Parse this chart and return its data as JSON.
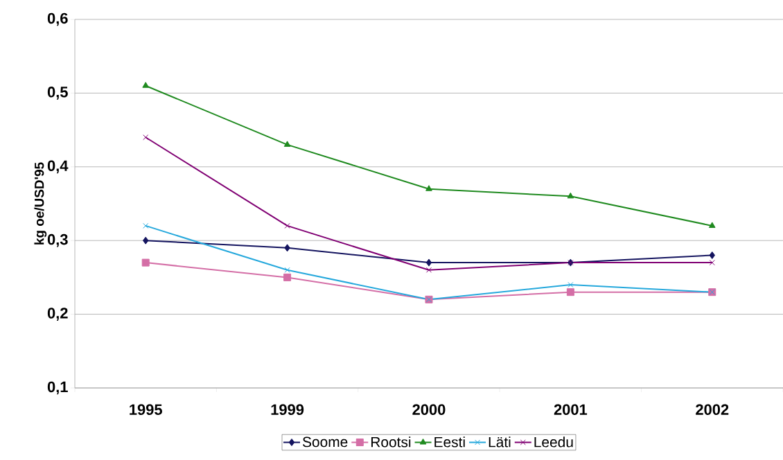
{
  "chart_data": {
    "type": "line",
    "ylabel": "kg oe/USD'95",
    "categories": [
      "1995",
      "1999",
      "2000",
      "2001",
      "2002"
    ],
    "ylim": [
      0.1,
      0.6
    ],
    "yticks": [
      {
        "value": 0.1,
        "label": "0,1"
      },
      {
        "value": 0.2,
        "label": "0,2"
      },
      {
        "value": 0.3,
        "label": "0,3"
      },
      {
        "value": 0.4,
        "label": "0,4"
      },
      {
        "value": 0.5,
        "label": "0,5"
      },
      {
        "value": 0.6,
        "label": "0,6"
      }
    ],
    "grid": "y",
    "legend": "bottom",
    "series": [
      {
        "name": "Soome",
        "color": "#14145f",
        "marker": "diamond",
        "values": [
          0.3,
          0.29,
          0.27,
          0.27,
          0.28
        ]
      },
      {
        "name": "Rootsi",
        "color": "#d46ea6",
        "marker": "square",
        "values": [
          0.27,
          0.25,
          0.22,
          0.23,
          0.23
        ]
      },
      {
        "name": "Eesti",
        "color": "#1f8a1f",
        "marker": "triangle",
        "values": [
          0.51,
          0.43,
          0.37,
          0.36,
          0.32
        ]
      },
      {
        "name": "Läti",
        "color": "#25a8dc",
        "marker": "cross",
        "values": [
          0.32,
          0.26,
          0.22,
          0.24,
          0.23
        ]
      },
      {
        "name": "Leedu",
        "color": "#800073",
        "marker": "cross",
        "values": [
          0.44,
          0.32,
          0.26,
          0.27,
          0.27
        ]
      }
    ]
  }
}
